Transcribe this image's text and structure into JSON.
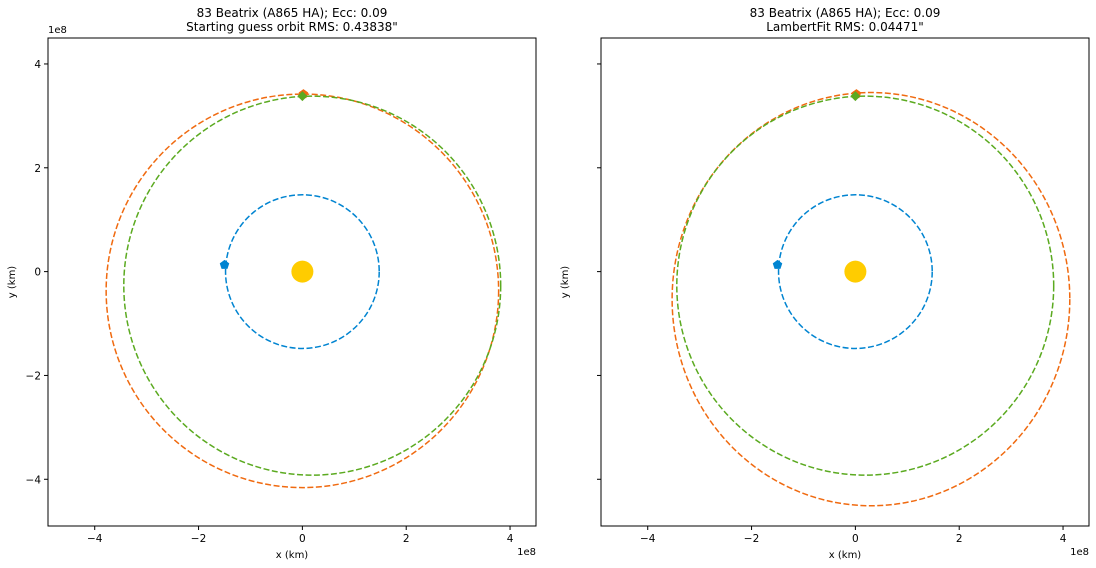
{
  "chart_data": [
    {
      "type": "scatter",
      "title": "83 Beatrix (A865 HA); Ecc: 0.09",
      "subtitle": "Starting guess orbit RMS: 0.43838\"",
      "xlabel": "x (km)",
      "ylabel": "y (km)",
      "axis_multiplier": "1e8",
      "xlim": [
        -4.9,
        4.5
      ],
      "ylim": [
        -4.9,
        4.5
      ],
      "xticks": [
        -4,
        -2,
        0,
        2,
        4
      ],
      "xtick_labels": [
        "−4",
        "−2",
        "0",
        "2",
        "4"
      ],
      "yticks": [
        -4,
        -2,
        0,
        2,
        4
      ],
      "ytick_labels": [
        "−4",
        "−2",
        "0",
        "2",
        "4"
      ],
      "ytick_labels_visible": true,
      "grid": false,
      "sun": {
        "x": 0,
        "y": 0,
        "color": "#FFCC00"
      },
      "series": [
        {
          "style": "dashed",
          "color": "#0084D1",
          "orbit": {
            "cx": 0.0,
            "cy": 0.0,
            "rx": 1.48,
            "ry": 1.48
          },
          "marker": {
            "shape": "pentagon",
            "x": -1.5,
            "y": 0.13
          }
        },
        {
          "style": "dashed",
          "color": "#F06A10",
          "orbit": {
            "cx": 0.0,
            "cy": -0.37,
            "rx": 3.78,
            "ry": 3.79
          },
          "marker": {
            "shape": "pentagon",
            "x": 0.02,
            "y": 3.42
          }
        },
        {
          "style": "dashed",
          "color": "#5BAA20",
          "orbit": {
            "cx": 0.19,
            "cy": -0.27,
            "rx": 3.63,
            "ry": 3.65
          },
          "marker": {
            "shape": "diamond",
            "x": 0.0,
            "y": 3.38
          }
        }
      ]
    },
    {
      "type": "scatter",
      "title": "83 Beatrix (A865 HA); Ecc: 0.09",
      "subtitle": "LambertFit RMS: 0.04471\"",
      "xlabel": "x (km)",
      "ylabel": "y (km)",
      "axis_multiplier": "1e8",
      "xlim": [
        -4.9,
        4.5
      ],
      "ylim": [
        -4.9,
        4.5
      ],
      "xticks": [
        -4,
        -2,
        0,
        2,
        4
      ],
      "xtick_labels": [
        "−4",
        "−2",
        "0",
        "2",
        "4"
      ],
      "yticks": [
        -4,
        -2,
        0,
        2,
        4
      ],
      "ytick_labels": [],
      "ytick_labels_visible": false,
      "grid": false,
      "sun": {
        "x": 0,
        "y": 0,
        "color": "#FFCC00"
      },
      "series": [
        {
          "style": "dashed",
          "color": "#0084D1",
          "orbit": {
            "cx": 0.0,
            "cy": 0.0,
            "rx": 1.48,
            "ry": 1.48
          },
          "marker": {
            "shape": "pentagon",
            "x": -1.5,
            "y": 0.13
          }
        },
        {
          "style": "dashed",
          "color": "#F06A10",
          "orbit": {
            "cx": 0.3,
            "cy": -0.53,
            "rx": 3.83,
            "ry": 3.98
          },
          "marker": {
            "shape": "pentagon",
            "x": 0.02,
            "y": 3.42
          }
        },
        {
          "style": "dashed",
          "color": "#5BAA20",
          "orbit": {
            "cx": 0.19,
            "cy": -0.27,
            "rx": 3.63,
            "ry": 3.65
          },
          "marker": {
            "shape": "diamond",
            "x": 0.0,
            "y": 3.38
          }
        }
      ]
    }
  ]
}
